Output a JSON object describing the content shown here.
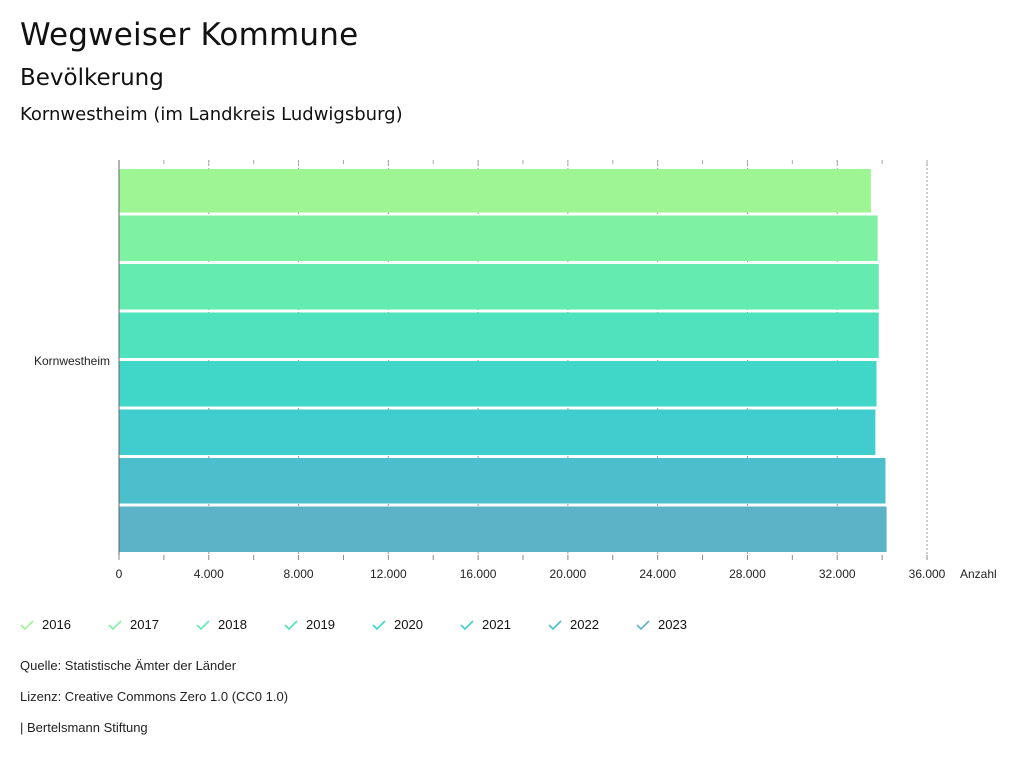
{
  "header": {
    "title": "Wegweiser Kommune",
    "subtitle": "Bevölkerung",
    "region": "Kornwestheim (im Landkreis Ludwigsburg)"
  },
  "chart_data": {
    "type": "bar",
    "orientation": "horizontal",
    "categories": [
      "Kornwestheim"
    ],
    "series": [
      {
        "name": "2016",
        "values": [
          33500
        ],
        "color": "#9ef593"
      },
      {
        "name": "2017",
        "values": [
          33800
        ],
        "color": "#7ff1a2"
      },
      {
        "name": "2018",
        "values": [
          33850
        ],
        "color": "#63ebb0"
      },
      {
        "name": "2019",
        "values": [
          33850
        ],
        "color": "#4fe2bd"
      },
      {
        "name": "2020",
        "values": [
          33750
        ],
        "color": "#40d6c8"
      },
      {
        "name": "2021",
        "values": [
          33700
        ],
        "color": "#41ccce"
      },
      {
        "name": "2022",
        "values": [
          34150
        ],
        "color": "#4bbfcc"
      },
      {
        "name": "2023",
        "values": [
          34200
        ],
        "color": "#5cb2c7"
      }
    ],
    "xlabel": "Anzahl",
    "xlim": [
      0,
      36000
    ],
    "xticks": [
      "0",
      "4.000",
      "8.000",
      "12.000",
      "16.000",
      "20.000",
      "24.000",
      "28.000",
      "32.000",
      "36.000"
    ],
    "xtick_values": [
      0,
      4000,
      8000,
      12000,
      16000,
      20000,
      24000,
      28000,
      32000,
      36000
    ],
    "legend_position": "bottom-left"
  },
  "footer": {
    "source": "Quelle: Statistische Ämter der Länder",
    "license": "Lizenz: Creative Commons Zero 1.0 (CC0 1.0)",
    "credit": "| Bertelsmann Stiftung"
  }
}
